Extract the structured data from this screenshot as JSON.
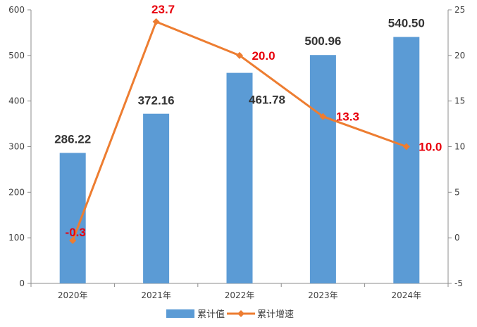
{
  "chart_data": {
    "type": "bar+line",
    "categories": [
      "2020年",
      "2021年",
      "2022年",
      "2023年",
      "2024年"
    ],
    "series": [
      {
        "name": "累计值",
        "type": "bar",
        "axis": "left",
        "values": [
          286.22,
          372.16,
          461.78,
          500.96,
          540.5
        ],
        "labels": [
          "286.22",
          "372.16",
          "461.78",
          "500.96",
          "540.50"
        ],
        "color": "#5b9bd5"
      },
      {
        "name": "累计增速",
        "type": "line",
        "axis": "right",
        "values": [
          -0.3,
          23.7,
          20.0,
          13.3,
          10.0
        ],
        "labels": [
          "-0.3",
          "23.7",
          "20.0",
          "13.3",
          "10.0"
        ],
        "color": "#ed7d31",
        "label_color": "#e8000b"
      }
    ],
    "y_left": {
      "range": [
        0,
        600
      ],
      "ticks": [
        "0",
        "100",
        "200",
        "300",
        "400",
        "500",
        "600"
      ]
    },
    "y_right": {
      "range": [
        -5,
        25
      ],
      "ticks": [
        "-5",
        "0",
        "5",
        "10",
        "15",
        "20",
        "25"
      ]
    },
    "grid": false,
    "legend": "bottom"
  }
}
